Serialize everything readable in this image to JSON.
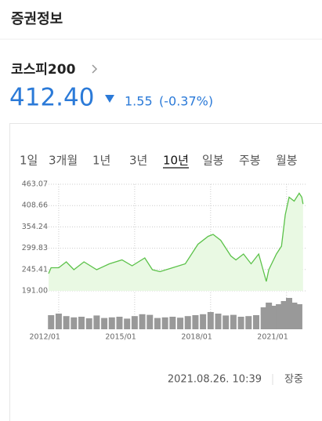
{
  "header": {
    "title": "증권정보"
  },
  "index": {
    "name": "코스피200",
    "price": "412.40",
    "change": "1.55",
    "change_pct": "(-0.37%)"
  },
  "tabs": {
    "items": [
      "1일",
      "3개월",
      "1년",
      "3년",
      "10년",
      "일봉",
      "주봉",
      "월봉"
    ],
    "selected": 4
  },
  "chart_data": [
    {
      "type": "line",
      "color": "#5cc24a",
      "fill": "#e9f9e3",
      "grid": true,
      "x": [
        2011.6,
        2011.7,
        2012.0,
        2012.3,
        2012.6,
        2013.0,
        2013.5,
        2014.0,
        2014.5,
        2014.9,
        2015.4,
        2015.7,
        2016.0,
        2016.5,
        2017.0,
        2017.5,
        2017.9,
        2018.1,
        2018.4,
        2018.8,
        2019.0,
        2019.3,
        2019.6,
        2019.9,
        2020.2,
        2020.3,
        2020.6,
        2020.8,
        2020.95,
        2021.1,
        2021.3,
        2021.5,
        2021.6,
        2021.65
      ],
      "values": [
        235,
        250,
        250,
        265,
        245,
        265,
        245,
        260,
        270,
        255,
        275,
        245,
        240,
        250,
        260,
        310,
        330,
        335,
        320,
        280,
        270,
        285,
        260,
        285,
        215,
        245,
        285,
        305,
        385,
        430,
        420,
        440,
        430,
        412.4
      ],
      "xlim": [
        2011.6,
        2021.75
      ],
      "xticks": [
        {
          "value": 2012,
          "label": "2012/01"
        },
        {
          "value": 2015,
          "label": "2015/01"
        },
        {
          "value": 2018,
          "label": "2018/01"
        },
        {
          "value": 2021,
          "label": "2021/01"
        }
      ],
      "ylim": [
        191,
        463.07
      ],
      "yticks": [
        {
          "value": 191,
          "label": "191.00"
        },
        245.41,
        299.83,
        354.24,
        408.66,
        463.07
      ]
    },
    {
      "type": "bar",
      "color": "#999999",
      "x": [
        2011.7,
        2012.0,
        2012.3,
        2012.6,
        2012.9,
        2013.2,
        2013.5,
        2013.8,
        2014.1,
        2014.4,
        2014.7,
        2015.0,
        2015.3,
        2015.6,
        2015.9,
        2016.2,
        2016.5,
        2016.8,
        2017.1,
        2017.4,
        2017.7,
        2018.0,
        2018.3,
        2018.6,
        2018.9,
        2019.2,
        2019.5,
        2019.8,
        2020.1,
        2020.3,
        2020.5,
        2020.7,
        2020.9,
        2021.1,
        2021.3,
        2021.5
      ],
      "values": [
        45,
        50,
        42,
        38,
        40,
        35,
        44,
        36,
        38,
        40,
        34,
        42,
        48,
        46,
        36,
        38,
        40,
        37,
        42,
        45,
        48,
        55,
        50,
        44,
        46,
        40,
        42,
        45,
        70,
        85,
        75,
        80,
        90,
        100,
        85,
        80
      ],
      "xlim": [
        2011.6,
        2021.75
      ],
      "ylim": [
        0,
        100
      ]
    }
  ],
  "footer": {
    "timestamp": "2021.08.26. 10:39",
    "status": "장중"
  }
}
